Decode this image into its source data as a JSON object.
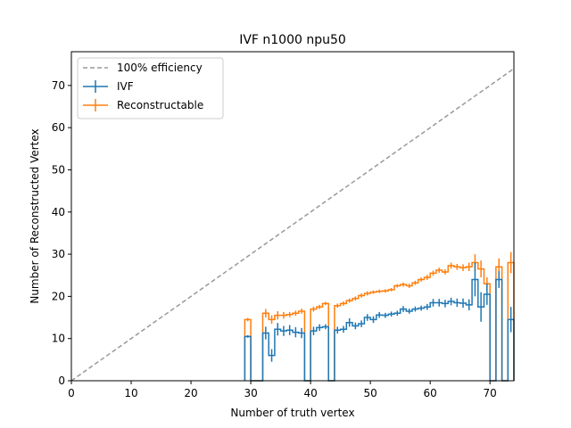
{
  "chart_data": {
    "type": "line",
    "title": "IVF n1000 npu50",
    "xlabel": "Number of truth vertex",
    "ylabel": "Number of Reconstructed Vertex",
    "xlim": [
      0,
      74
    ],
    "ylim": [
      0,
      78
    ],
    "xticks": [
      "0",
      "10",
      "20",
      "30",
      "40",
      "50",
      "60",
      "70"
    ],
    "yticks": [
      "0",
      "10",
      "20",
      "30",
      "40",
      "50",
      "60",
      "70"
    ],
    "grid": false,
    "legend_position": "top-left",
    "series": [
      {
        "name": "100% efficiency",
        "style": "dashed",
        "color": "#999999",
        "x": [
          0,
          74
        ],
        "y": [
          0,
          74
        ]
      },
      {
        "name": "IVF",
        "style": "step-errorbar",
        "color": "#1f77b4",
        "x": [
          29,
          30,
          31,
          32,
          33,
          34,
          35,
          36,
          37,
          38,
          39,
          40,
          41,
          42,
          43,
          44,
          45,
          46,
          47,
          48,
          49,
          50,
          51,
          52,
          53,
          54,
          55,
          56,
          57,
          58,
          59,
          60,
          61,
          62,
          63,
          64,
          65,
          66,
          67,
          68,
          69,
          70,
          71,
          72,
          73
        ],
        "y": [
          10.5,
          0,
          0,
          11.3,
          6,
          12.2,
          11.8,
          12,
          11.5,
          11.3,
          0,
          11.8,
          12.6,
          12.8,
          0,
          12,
          12.2,
          13.8,
          13,
          13.5,
          15,
          14.5,
          15.6,
          15.5,
          15.8,
          16,
          17,
          16.5,
          17,
          17.2,
          17.5,
          18.5,
          18.5,
          18.3,
          18.8,
          18.5,
          18.4,
          18,
          24,
          17.5,
          20.5,
          0,
          24,
          0,
          14.5
        ],
        "yerr": [
          0.3,
          0,
          0,
          1.5,
          1.5,
          1.5,
          1.2,
          1.2,
          1.2,
          1.2,
          0,
          1.0,
          0.8,
          0.6,
          0,
          0.8,
          0.8,
          1.0,
          0.8,
          0.8,
          0.8,
          0.8,
          0.7,
          0.6,
          0.6,
          0.6,
          0.7,
          0.6,
          0.6,
          0.6,
          0.7,
          0.9,
          0.9,
          0.9,
          0.9,
          1.0,
          1.1,
          1.3,
          4.0,
          3.5,
          2.5,
          0,
          2.0,
          0,
          3.0
        ]
      },
      {
        "name": "Reconstructable",
        "style": "step-errorbar",
        "color": "#ff7f0e",
        "x": [
          29,
          30,
          31,
          32,
          33,
          34,
          35,
          36,
          37,
          38,
          39,
          40,
          41,
          42,
          43,
          44,
          45,
          46,
          47,
          48,
          49,
          50,
          51,
          52,
          53,
          54,
          55,
          56,
          57,
          58,
          59,
          60,
          61,
          62,
          63,
          64,
          65,
          66,
          67,
          68,
          69,
          70,
          71,
          72,
          73
        ],
        "y": [
          14.5,
          0,
          0,
          16,
          14.5,
          15.5,
          15.5,
          15.7,
          16,
          16.5,
          0,
          17,
          17.5,
          18.3,
          0,
          17.8,
          18.3,
          19,
          19.5,
          20.2,
          20.7,
          21,
          21.2,
          21.3,
          21.6,
          22.5,
          22.8,
          22.5,
          23.2,
          24,
          24.5,
          25.5,
          26.2,
          25.8,
          27.3,
          27,
          26.8,
          27,
          28,
          26.5,
          23,
          0,
          27,
          0,
          28
        ],
        "yerr": [
          0.4,
          0,
          0,
          1.0,
          1.0,
          1.0,
          0.8,
          0.6,
          0.6,
          0.6,
          0,
          0.6,
          0.5,
          0.4,
          0,
          0.5,
          0.5,
          0.5,
          0.5,
          0.5,
          0.5,
          0.4,
          0.4,
          0.4,
          0.4,
          0.4,
          0.5,
          0.5,
          0.5,
          0.5,
          0.6,
          0.6,
          0.6,
          0.6,
          0.7,
          0.7,
          0.8,
          1.0,
          2.0,
          2.0,
          1.5,
          0,
          2.0,
          0,
          2.5
        ]
      }
    ]
  }
}
